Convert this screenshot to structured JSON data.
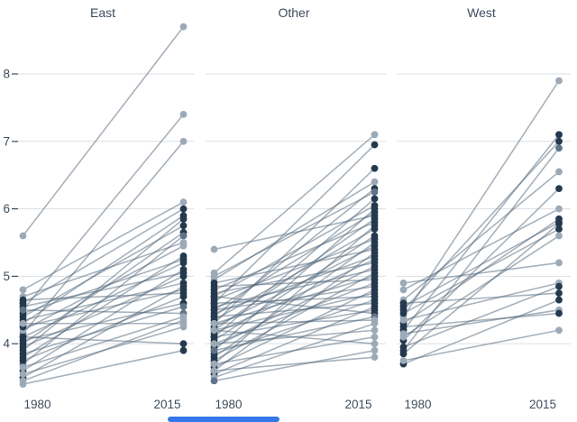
{
  "chart_data": {
    "type": "line",
    "subtype": "slopegraph-small-multiples",
    "title": "",
    "x": [
      1980,
      2015
    ],
    "x_tick_labels": [
      "1980",
      "2015"
    ],
    "y_ticks": [
      4,
      5,
      6,
      7,
      8
    ],
    "ylim": [
      3.3,
      8.9
    ],
    "grid": true,
    "legend": "none",
    "panels": [
      {
        "title": "East",
        "lines": [
          [
            5.6,
            8.7,
            "L",
            "L"
          ],
          [
            4.5,
            7.4,
            "L",
            "L"
          ],
          [
            4.15,
            7.0,
            "M",
            "L"
          ],
          [
            4.8,
            6.1,
            "L",
            "L"
          ],
          [
            4.6,
            6.0,
            "D",
            "D"
          ],
          [
            4.3,
            5.9,
            "D",
            "D"
          ],
          [
            3.9,
            5.85,
            "D",
            "D"
          ],
          [
            4.4,
            5.75,
            "D",
            "D"
          ],
          [
            4.0,
            5.65,
            "D",
            "D"
          ],
          [
            3.7,
            5.6,
            "M",
            "M"
          ],
          [
            4.7,
            5.5,
            "L",
            "L"
          ],
          [
            4.2,
            5.45,
            "L",
            "L"
          ],
          [
            3.8,
            5.3,
            "D",
            "D"
          ],
          [
            4.45,
            5.25,
            "D",
            "D"
          ],
          [
            4.1,
            5.2,
            "D",
            "D"
          ],
          [
            3.6,
            5.1,
            "D",
            "D"
          ],
          [
            4.55,
            5.05,
            "D",
            "D"
          ],
          [
            3.95,
            5.0,
            "D",
            "D"
          ],
          [
            4.35,
            4.9,
            "D",
            "D"
          ],
          [
            3.5,
            4.85,
            "D",
            "D"
          ],
          [
            4.25,
            4.8,
            "D",
            "D"
          ],
          [
            4.65,
            4.75,
            "D",
            "D"
          ],
          [
            3.75,
            4.7,
            "D",
            "D"
          ],
          [
            4.05,
            4.6,
            "D",
            "D"
          ],
          [
            3.85,
            4.55,
            "D",
            "M"
          ],
          [
            4.5,
            4.45,
            "M",
            "M"
          ],
          [
            3.65,
            4.4,
            "L",
            "L"
          ],
          [
            3.45,
            4.35,
            "L",
            "L"
          ],
          [
            4.3,
            4.3,
            "L",
            "L"
          ],
          [
            3.55,
            4.25,
            "L",
            "L"
          ],
          [
            4.1,
            4.0,
            "D",
            "D"
          ],
          [
            3.4,
            3.9,
            "L",
            "D"
          ]
        ]
      },
      {
        "title": "Other",
        "lines": [
          [
            5.4,
            5.9,
            "L",
            "D"
          ],
          [
            5.05,
            7.1,
            "L",
            "L"
          ],
          [
            4.6,
            6.95,
            "D",
            "D"
          ],
          [
            4.3,
            6.6,
            "D",
            "D"
          ],
          [
            4.95,
            6.4,
            "L",
            "L"
          ],
          [
            4.4,
            6.3,
            "D",
            "D"
          ],
          [
            5.0,
            6.25,
            "L",
            "M"
          ],
          [
            4.1,
            6.15,
            "D",
            "D"
          ],
          [
            4.7,
            6.05,
            "D",
            "D"
          ],
          [
            3.9,
            6.0,
            "D",
            "D"
          ],
          [
            4.5,
            5.95,
            "D",
            "D"
          ],
          [
            4.2,
            5.85,
            "D",
            "D"
          ],
          [
            4.8,
            5.8,
            "D",
            "D"
          ],
          [
            3.7,
            5.75,
            "D",
            "D"
          ],
          [
            4.35,
            5.7,
            "D",
            "D"
          ],
          [
            4.05,
            5.6,
            "D",
            "D"
          ],
          [
            4.65,
            5.55,
            "D",
            "D"
          ],
          [
            3.8,
            5.5,
            "D",
            "D"
          ],
          [
            4.25,
            5.45,
            "D",
            "D"
          ],
          [
            4.9,
            5.4,
            "D",
            "D"
          ],
          [
            3.6,
            5.35,
            "D",
            "D"
          ],
          [
            4.45,
            5.3,
            "D",
            "D"
          ],
          [
            4.15,
            5.25,
            "D",
            "D"
          ],
          [
            4.75,
            5.2,
            "D",
            "D"
          ],
          [
            3.95,
            5.15,
            "D",
            "D"
          ],
          [
            4.55,
            5.1,
            "D",
            "D"
          ],
          [
            3.75,
            5.05,
            "D",
            "D"
          ],
          [
            4.3,
            5.0,
            "D",
            "D"
          ],
          [
            4.85,
            4.95,
            "D",
            "D"
          ],
          [
            4.0,
            4.9,
            "D",
            "D"
          ],
          [
            4.5,
            4.85,
            "D",
            "D"
          ],
          [
            3.65,
            4.8,
            "D",
            "D"
          ],
          [
            4.2,
            4.75,
            "D",
            "D"
          ],
          [
            4.6,
            4.7,
            "D",
            "D"
          ],
          [
            3.85,
            4.65,
            "D",
            "D"
          ],
          [
            4.4,
            4.6,
            "D",
            "D"
          ],
          [
            3.55,
            4.55,
            "D",
            "D"
          ],
          [
            4.1,
            4.5,
            "D",
            "D"
          ],
          [
            4.7,
            4.45,
            "D",
            "D"
          ],
          [
            3.9,
            4.4,
            "M",
            "M"
          ],
          [
            4.3,
            4.35,
            "L",
            "L"
          ],
          [
            3.5,
            4.3,
            "L",
            "L"
          ],
          [
            4.0,
            4.2,
            "L",
            "L"
          ],
          [
            3.7,
            4.1,
            "L",
            "L"
          ],
          [
            4.2,
            4.0,
            "L",
            "L"
          ],
          [
            3.45,
            3.9,
            "M",
            "L"
          ],
          [
            3.6,
            3.8,
            "L",
            "L"
          ]
        ]
      },
      {
        "title": "West",
        "lines": [
          [
            4.4,
            7.9,
            "L",
            "L"
          ],
          [
            4.2,
            7.1,
            "D",
            "D"
          ],
          [
            4.5,
            7.0,
            "D",
            "D"
          ],
          [
            3.9,
            6.9,
            "D",
            "M"
          ],
          [
            4.65,
            6.55,
            "L",
            "L"
          ],
          [
            4.05,
            6.3,
            "D",
            "D"
          ],
          [
            4.8,
            6.0,
            "L",
            "L"
          ],
          [
            4.3,
            5.85,
            "D",
            "D"
          ],
          [
            4.55,
            5.8,
            "D",
            "D"
          ],
          [
            3.85,
            5.78,
            "D",
            "D"
          ],
          [
            4.45,
            5.7,
            "D",
            "D"
          ],
          [
            4.1,
            5.6,
            "L",
            "L"
          ],
          [
            4.9,
            5.2,
            "L",
            "L"
          ],
          [
            4.35,
            4.9,
            "L",
            "L"
          ],
          [
            3.95,
            4.85,
            "D",
            "D"
          ],
          [
            4.6,
            4.75,
            "D",
            "D"
          ],
          [
            3.7,
            4.65,
            "D",
            "D"
          ],
          [
            4.15,
            4.5,
            "L",
            "L"
          ],
          [
            4.25,
            4.45,
            "D",
            "D"
          ],
          [
            3.75,
            4.2,
            "L",
            "L"
          ]
        ]
      }
    ]
  },
  "styles": {
    "background": "#ffffff",
    "text_color": "#3e4d5d",
    "grid_color": "#dcdfe2",
    "tick_color": "#3e4d5d",
    "line_color": "#4f657a",
    "line_opacity": "0.5",
    "dot_dark": "#24394e",
    "dot_mid": "#5f7488",
    "dot_light": "#9caab8",
    "scrollbar_color": "#3377e8"
  },
  "dot_color_legend": {
    "D": "dark",
    "M": "mid",
    "L": "light"
  }
}
